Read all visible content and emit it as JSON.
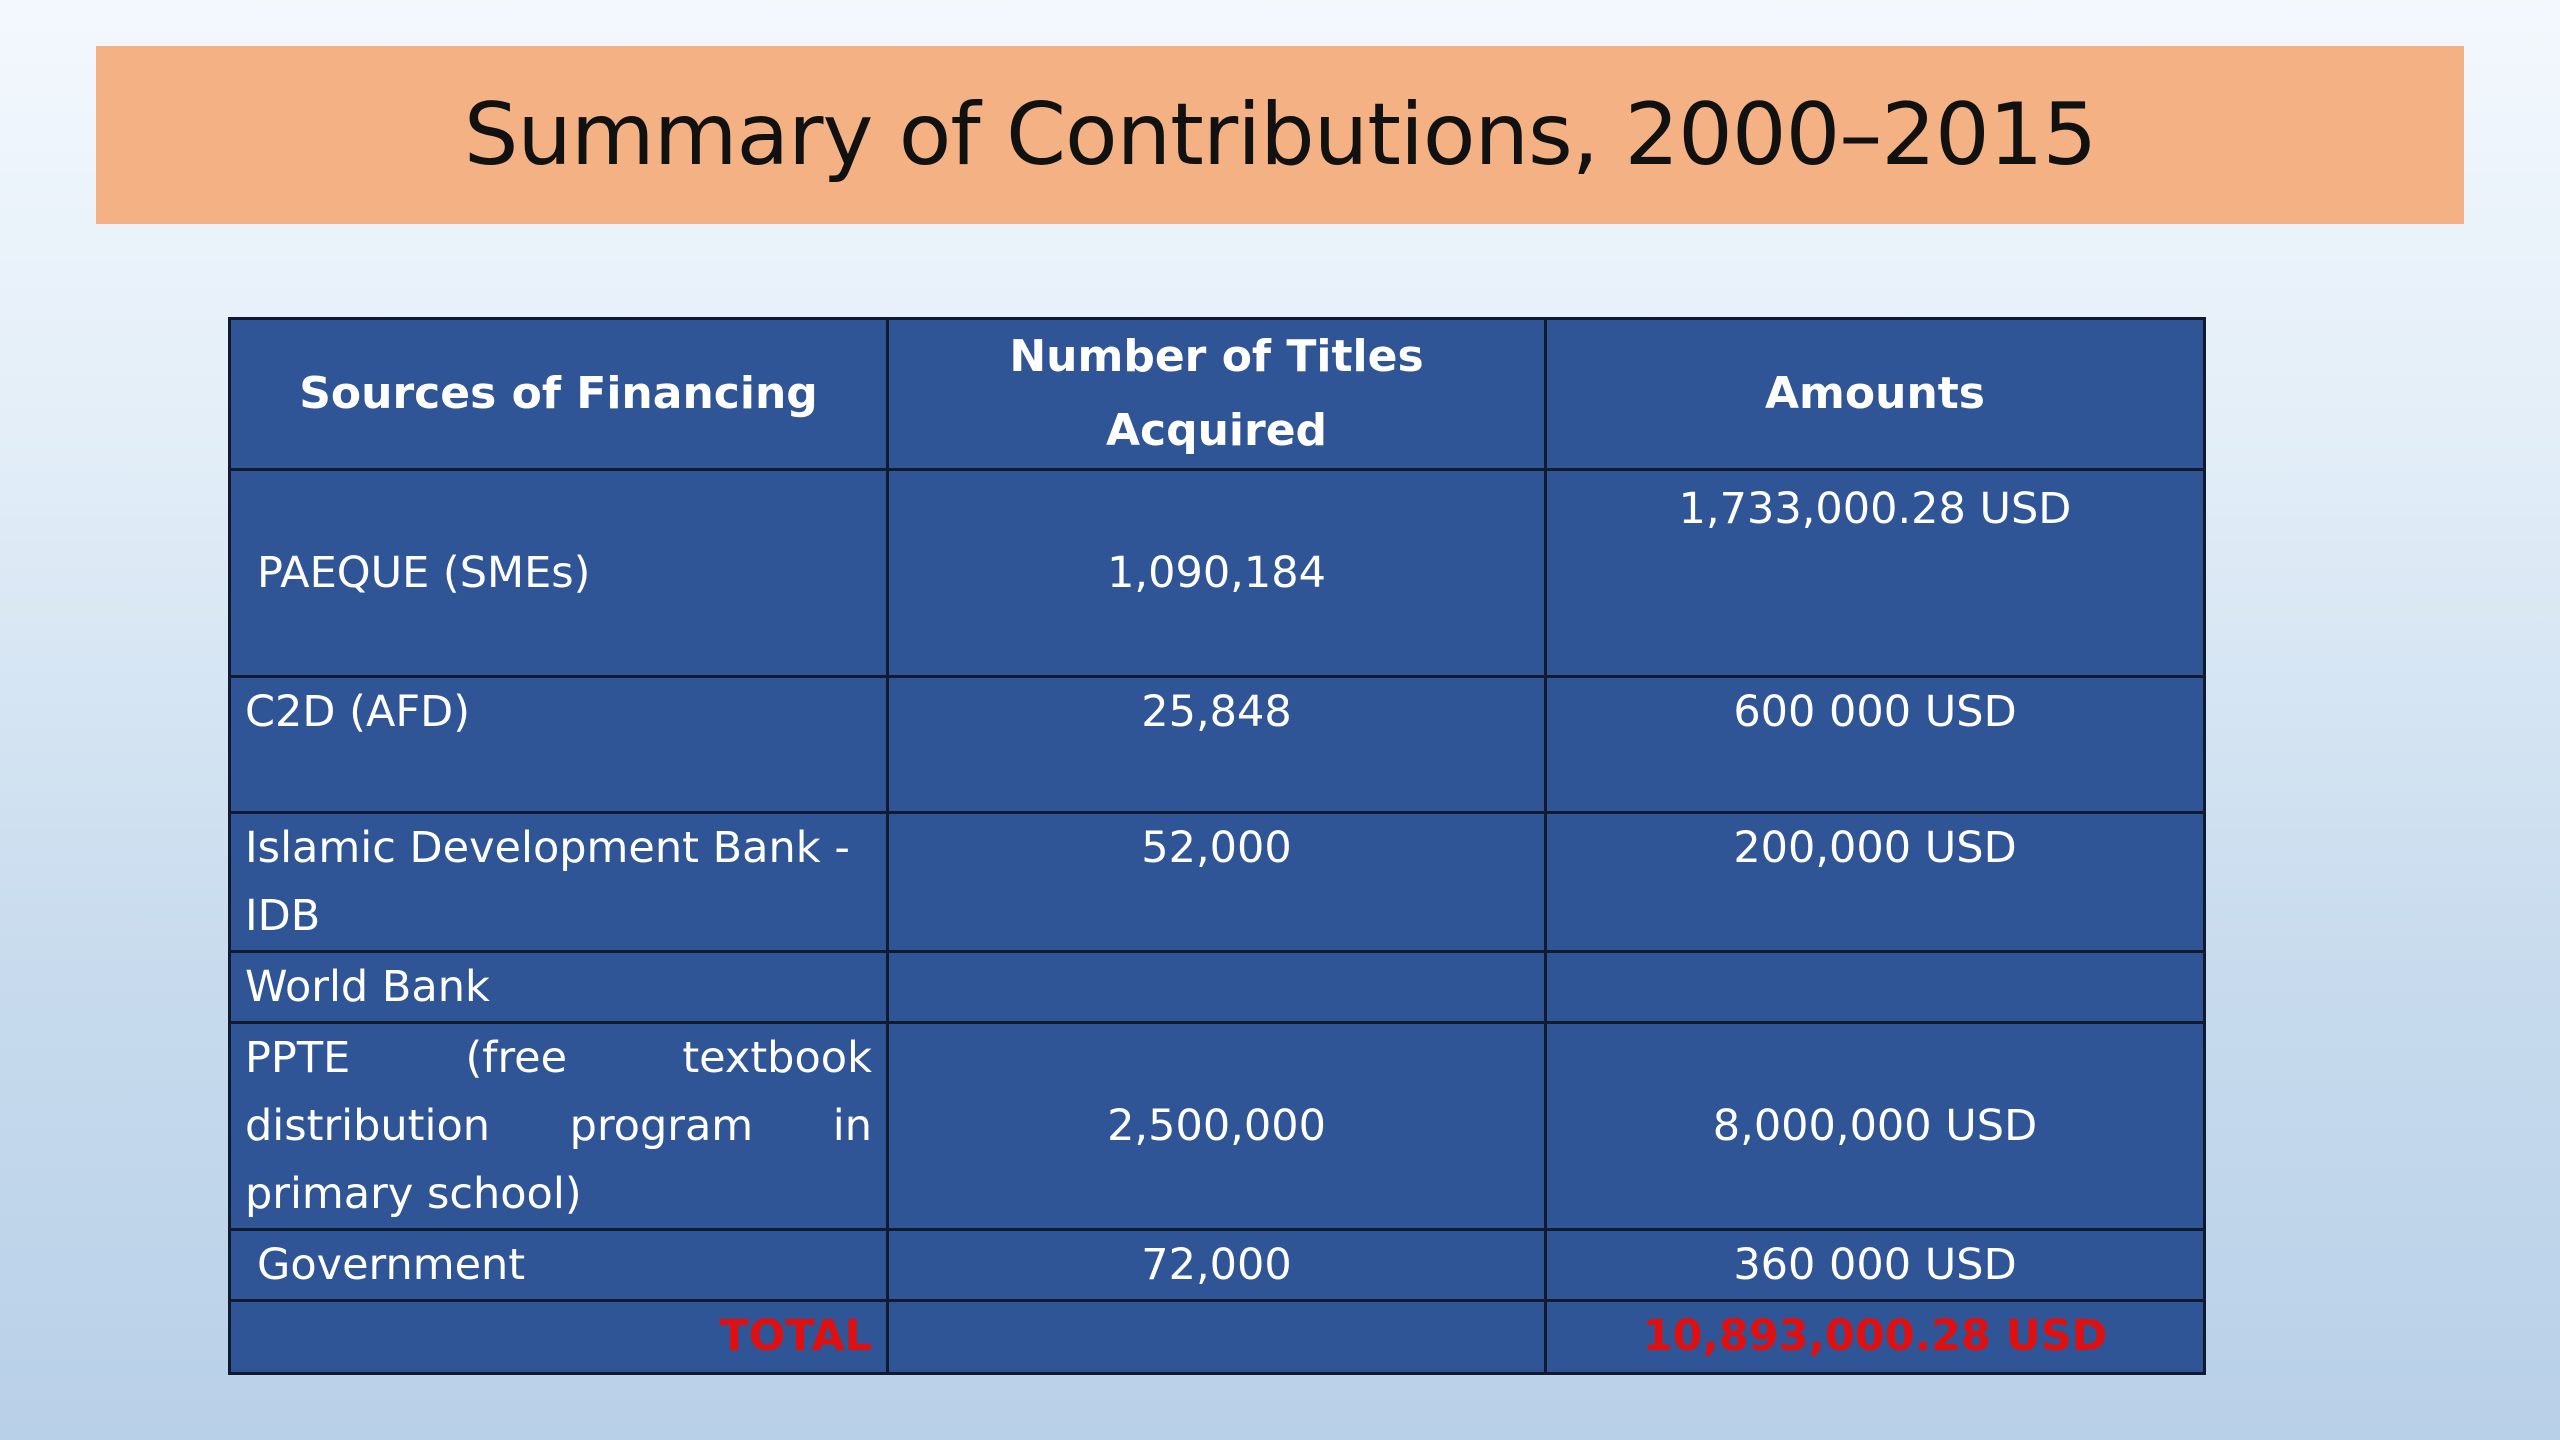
{
  "title": "Summary of Contributions, 2000–2015",
  "table": {
    "headers": [
      "Sources of Financing",
      "Number of Titles Acquired",
      "Amounts"
    ],
    "rows": [
      {
        "source": "PAEQUE (SMEs)",
        "titles": "1,090,184",
        "amount": "1,733,000.28 USD"
      },
      {
        "source": "C2D (AFD)",
        "titles": "25,848",
        "amount": "600 000 USD"
      },
      {
        "source": "Islamic Development Bank - IDB",
        "titles": "52,000",
        "amount": "200,000 USD"
      },
      {
        "source": "World Bank",
        "titles": "",
        "amount": ""
      },
      {
        "source": "PPTE (free textbook distribution program in primary school)",
        "titles": "2,500,000",
        "amount": "8,000,000 USD"
      },
      {
        "source": "Government",
        "titles": "72,000",
        "amount": "360 000 USD"
      }
    ],
    "total": {
      "label": "TOTAL",
      "titles": "",
      "amount": "10,893,000.28 USD"
    }
  },
  "colors": {
    "banner": "#f4b183",
    "table_fill": "#2f5597",
    "total_text": "#e01010"
  }
}
